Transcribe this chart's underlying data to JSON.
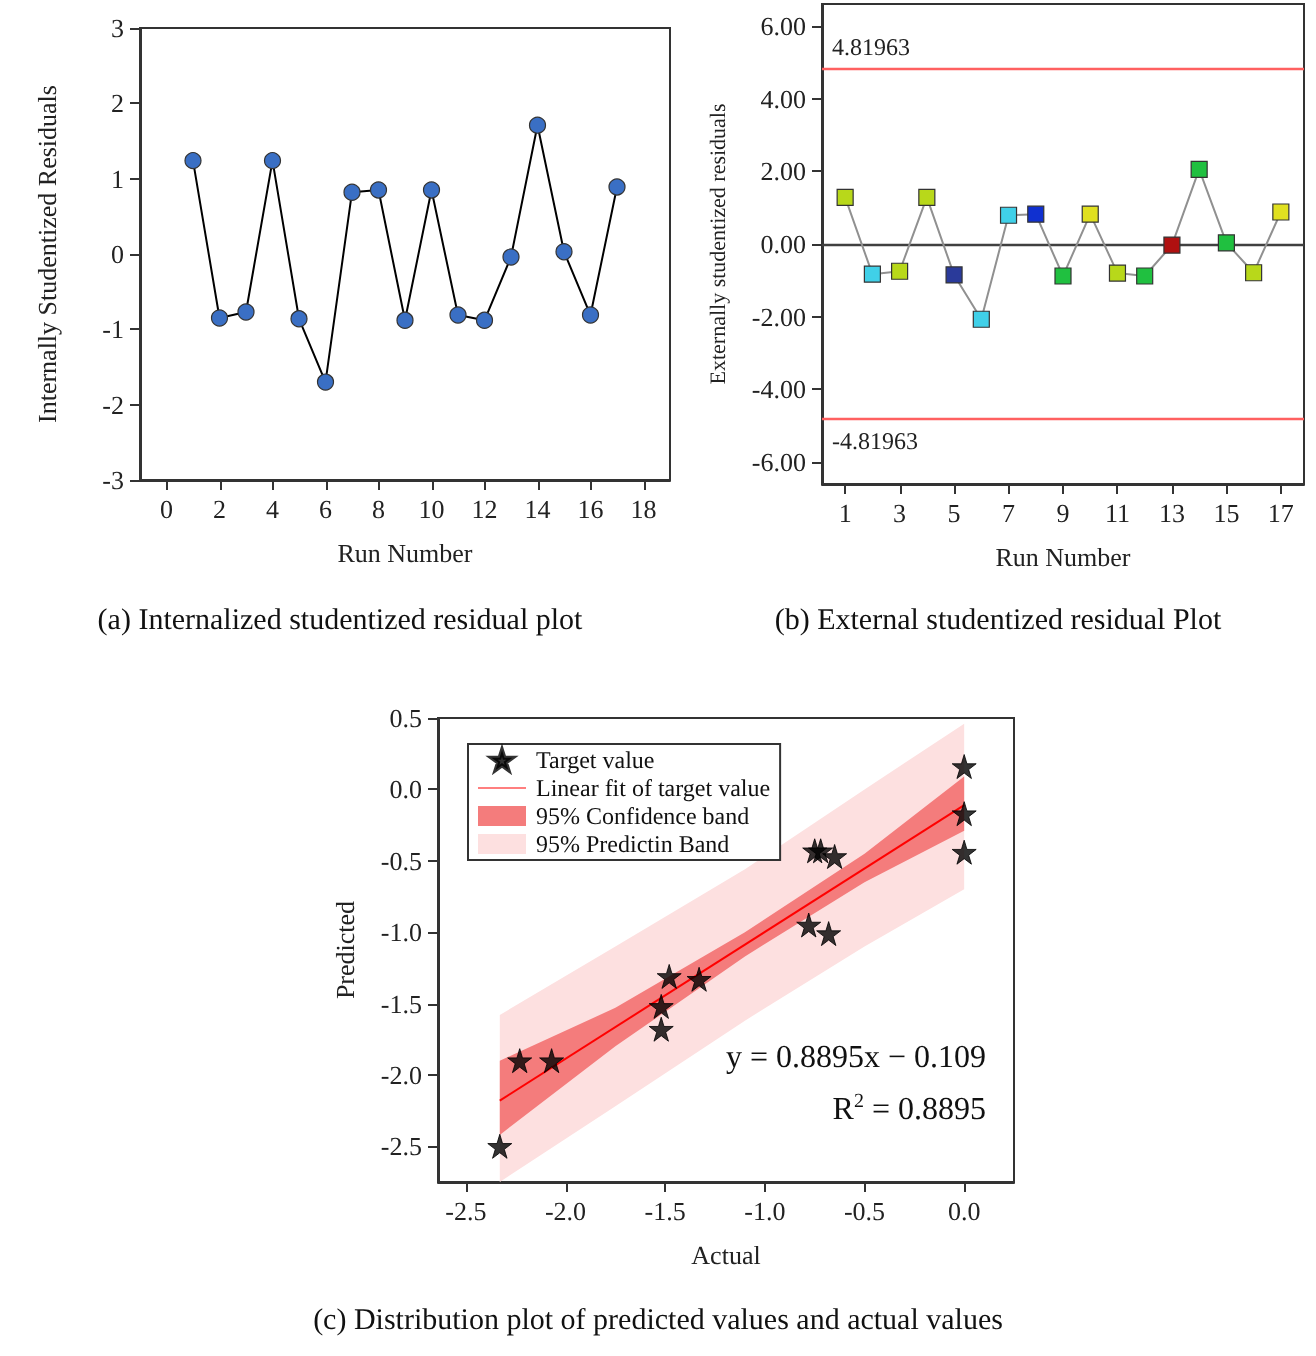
{
  "chart_data": [
    {
      "type": "line",
      "title": "(a) Internalized studentized residual plot",
      "xlabel": "Run Number",
      "ylabel": "Internally Studentized Residuals",
      "x": [
        1,
        2,
        3,
        4,
        5,
        6,
        7,
        8,
        9,
        10,
        11,
        12,
        13,
        14,
        15,
        16,
        17
      ],
      "values": [
        1.24,
        -0.85,
        -0.77,
        1.24,
        -0.86,
        -1.7,
        0.82,
        0.85,
        -0.88,
        0.85,
        -0.81,
        -0.88,
        -0.04,
        1.71,
        0.03,
        -0.81,
        0.89
      ],
      "color": "#000000",
      "colors": [
        "#3a6fc4",
        "#3a6fc4",
        "#3a6fc4",
        "#3a6fc4",
        "#3a6fc4",
        "#3a6fc4",
        "#3a6fc4",
        "#3a6fc4",
        "#3a6fc4",
        "#3a6fc4",
        "#3a6fc4",
        "#3a6fc4",
        "#3a6fc4",
        "#3a6fc4",
        "#3a6fc4",
        "#3a6fc4",
        "#3a6fc4"
      ],
      "marker": "circle",
      "xlim": [
        -1,
        19
      ],
      "xticks": [
        0,
        2,
        4,
        6,
        8,
        10,
        12,
        14,
        16,
        18
      ],
      "ylim": [
        -3,
        3
      ],
      "yticks": [
        -3,
        -2,
        -1,
        0,
        1,
        2,
        3
      ],
      "grid": false,
      "legend": false
    },
    {
      "type": "line",
      "title": "(b) External studentized residual Plot",
      "xlabel": "Run Number",
      "ylabel": "Externally studentized residuals",
      "x": [
        1,
        2,
        3,
        4,
        5,
        6,
        7,
        8,
        9,
        10,
        11,
        12,
        13,
        14,
        15,
        16,
        17
      ],
      "values": [
        1.28,
        -0.83,
        -0.75,
        1.28,
        -0.85,
        -2.07,
        0.79,
        0.82,
        -0.88,
        0.82,
        -0.8,
        -0.88,
        -0.03,
        2.05,
        0.03,
        -0.79,
        0.88
      ],
      "color": "#909090",
      "colors": [
        "#b8d81a",
        "#40d0e8",
        "#b8d81a",
        "#b8d81a",
        "#2a3a9a",
        "#40d0e8",
        "#40d0e8",
        "#1030d0",
        "#20c040",
        "#e0e020",
        "#b8d81a",
        "#20c040",
        "#b01010",
        "#20c040",
        "#20c040",
        "#b8d81a",
        "#e0e020"
      ],
      "marker": "square",
      "xlim": [
        0.15,
        17.85
      ],
      "xticks": [
        1,
        3,
        5,
        7,
        9,
        11,
        13,
        15,
        17
      ],
      "ylim": [
        -6.6,
        6.6
      ],
      "yticks": [
        {
          "value": -6,
          "label": "-6.00"
        },
        {
          "value": -4,
          "label": "-4.00"
        },
        {
          "value": -2,
          "label": "-2.00"
        },
        {
          "value": 0,
          "label": "0.00"
        },
        {
          "value": 2,
          "label": "2.00"
        },
        {
          "value": 4,
          "label": "4.00"
        },
        {
          "value": 6,
          "label": "6.00"
        }
      ],
      "grid": false,
      "legend": false,
      "ref_lines": [
        {
          "axis": "y",
          "value": 4.81963,
          "label": "4.81963",
          "color": "#ff6060"
        },
        {
          "axis": "y",
          "value": -4.81963,
          "label": "-4.81963",
          "color": "#ff6060"
        },
        {
          "axis": "y",
          "value": 0,
          "label": null,
          "color": "#404040"
        }
      ]
    },
    {
      "type": "scatter",
      "title": "(c) Distribution plot of predicted values and actual values",
      "xlabel": "Actual",
      "ylabel": "Predicted",
      "xlim": [
        -2.64,
        0.25
      ],
      "xticks": [
        {
          "value": -2.5,
          "label": "-2.5"
        },
        {
          "value": -2,
          "label": "-2.0"
        },
        {
          "value": -1.5,
          "label": "-1.5"
        },
        {
          "value": -1,
          "label": "-1.0"
        },
        {
          "value": -0.5,
          "label": "-0.5"
        },
        {
          "value": 0,
          "label": "0.0"
        }
      ],
      "ylim": [
        -2.75,
        0.5
      ],
      "yticks": [
        {
          "value": -2.5,
          "label": "-2.5"
        },
        {
          "value": -2,
          "label": "-2.0"
        },
        {
          "value": -1.5,
          "label": "-1.5"
        },
        {
          "value": -1,
          "label": "-1.0"
        },
        {
          "value": -0.5,
          "label": "-0.5"
        },
        {
          "value": 0,
          "label": "0.0"
        },
        {
          "value": 0.5,
          "label": "0.5"
        }
      ],
      "grid": false,
      "legend": "top left",
      "annotations": [
        "y = 0.8895x − 0.109",
        "R$^{2}$ = 0.8895"
      ],
      "series": [
        {
          "name": "Target value",
          "type": "scatter",
          "marker": "star",
          "color": "#000000",
          "x": [
            -2.33,
            -2.23,
            -2.07,
            -1.52,
            -1.52,
            -1.48,
            -1.33,
            -0.78,
            -0.68,
            -0.75,
            -0.72,
            -0.65,
            0,
            0,
            0
          ],
          "values": [
            -2.5,
            -1.9,
            -1.9,
            -1.52,
            -1.68,
            -1.31,
            -1.33,
            -0.95,
            -1.01,
            -0.43,
            -0.43,
            -0.47,
            0.16,
            -0.17,
            -0.44
          ]
        },
        {
          "name": "Linear fit of target value",
          "type": "line",
          "color": "#ff0000",
          "x": [
            -2.33,
            0
          ],
          "values": [
            -2.18,
            -0.11
          ]
        },
        {
          "name": "95% Confidence band",
          "type": "area",
          "color": "#f47c7c",
          "x": [
            -2.33,
            -1.75,
            -1.1,
            -0.5,
            0
          ],
          "values": [
            null,
            null,
            null,
            null,
            null
          ],
          "lower": [
            -2.42,
            -1.8,
            -1.17,
            -0.65,
            -0.29
          ],
          "upper": [
            -1.9,
            -1.53,
            -1.0,
            -0.45,
            0.09
          ]
        },
        {
          "name": "95% Predictin Band",
          "type": "area",
          "color": "#fde0e0",
          "x": [
            -2.33,
            -1.75,
            -1.1,
            -0.5,
            0
          ],
          "values": [
            null,
            null,
            null,
            null,
            null
          ],
          "lower": [
            -2.75,
            -2.22,
            -1.62,
            -1.1,
            -0.7
          ],
          "upper": [
            -1.58,
            -1.1,
            -0.56,
            0.0,
            0.46
          ]
        }
      ]
    }
  ]
}
